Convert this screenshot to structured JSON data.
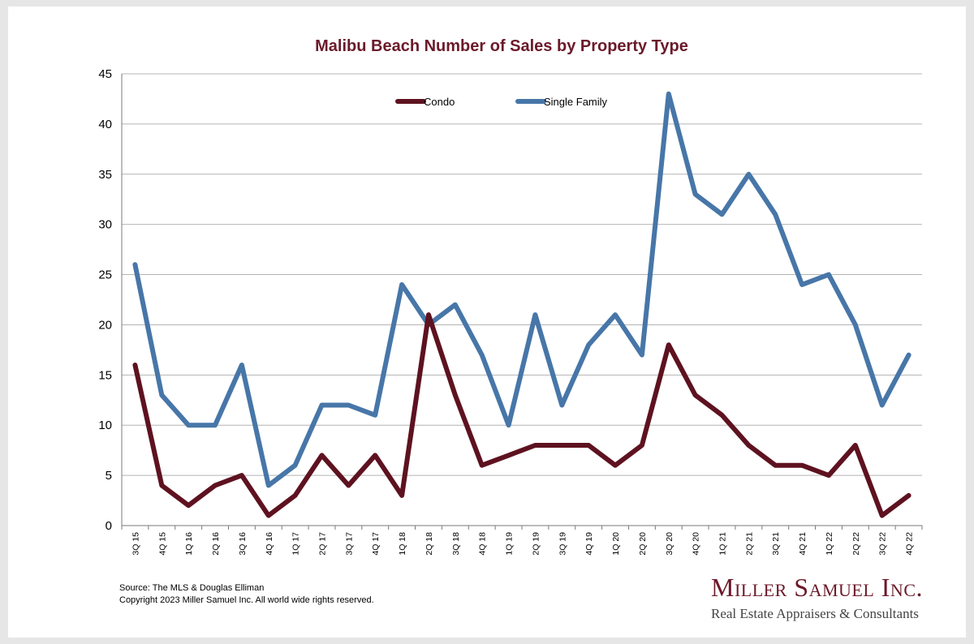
{
  "chart_data": {
    "type": "line",
    "title": "Malibu Beach Number of Sales by Property Type",
    "xlabel": "",
    "ylabel": "",
    "ylim": [
      0,
      45
    ],
    "yticks": [
      0,
      5,
      10,
      15,
      20,
      25,
      30,
      35,
      40,
      45
    ],
    "grid": true,
    "legend_position": "top-center",
    "categories": [
      "3Q 15",
      "4Q 15",
      "1Q 16",
      "2Q 16",
      "3Q 16",
      "4Q 16",
      "1Q 17",
      "2Q 17",
      "3Q 17",
      "4Q 17",
      "1Q 18",
      "2Q 18",
      "3Q 18",
      "4Q 18",
      "1Q 19",
      "2Q 19",
      "3Q 19",
      "4Q 19",
      "1Q 20",
      "2Q 20",
      "3Q 20",
      "4Q 20",
      "1Q 21",
      "2Q 21",
      "3Q 21",
      "4Q 21",
      "1Q 22",
      "2Q 22",
      "3Q 22",
      "4Q 22"
    ],
    "series": [
      {
        "name": "Condo",
        "color": "#5e1220",
        "values": [
          16,
          4,
          2,
          4,
          5,
          1,
          3,
          7,
          4,
          7,
          3,
          21,
          13,
          6,
          7,
          8,
          8,
          8,
          6,
          8,
          18,
          13,
          11,
          8,
          6,
          6,
          5,
          8,
          1,
          3
        ]
      },
      {
        "name": "Single Family",
        "color": "#4776a8",
        "values": [
          26,
          13,
          10,
          10,
          16,
          4,
          6,
          12,
          12,
          11,
          24,
          20,
          22,
          17,
          10,
          21,
          12,
          18,
          21,
          17,
          43,
          33,
          31,
          35,
          31,
          24,
          25,
          20,
          12,
          17
        ]
      }
    ]
  },
  "footer": {
    "source": "Source: The MLS & Douglas Elliman",
    "copyright": "Copyright 2023 Miller Samuel Inc.  All world wide rights reserved."
  },
  "brand": {
    "name": "Miller Samuel Inc.",
    "tagline": "Real Estate Appraisers & Consultants"
  }
}
